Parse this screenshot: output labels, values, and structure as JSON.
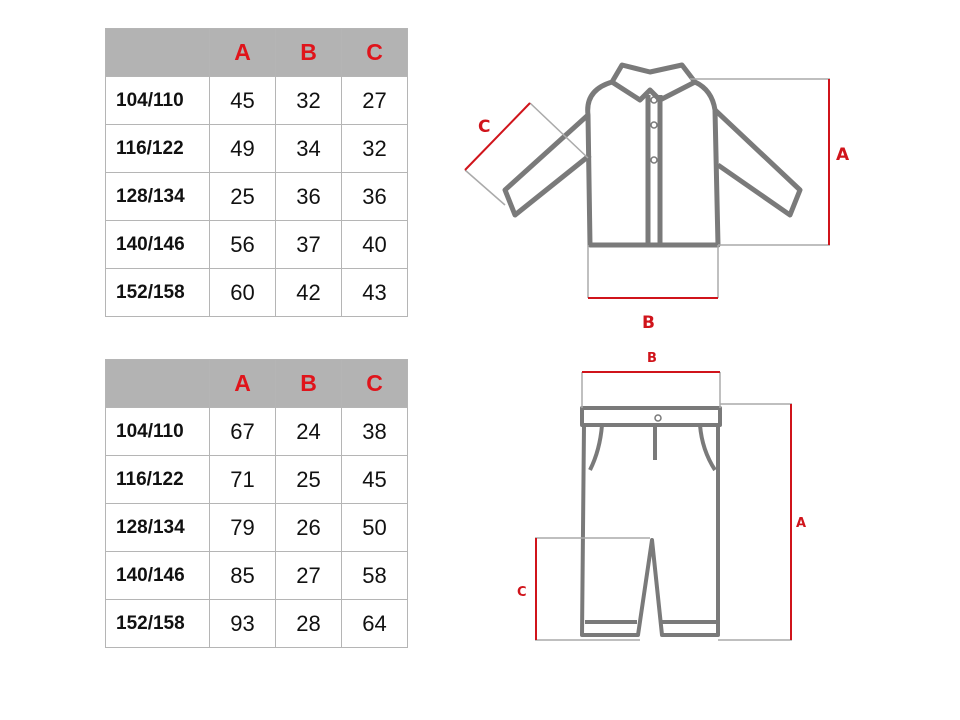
{
  "shirt_table": {
    "headers": [
      "",
      "A",
      "B",
      "C"
    ],
    "rows": [
      {
        "size": "104/110",
        "A": "45",
        "B": "32",
        "C": "27"
      },
      {
        "size": "116/122",
        "A": "49",
        "B": "34",
        "C": "32"
      },
      {
        "size": "128/134",
        "A": "25",
        "B": "36",
        "C": "36"
      },
      {
        "size": "140/146",
        "A": "56",
        "B": "37",
        "C": "40"
      },
      {
        "size": "152/158",
        "A": "60",
        "B": "42",
        "C": "43"
      }
    ]
  },
  "pants_table": {
    "headers": [
      "",
      "A",
      "B",
      "C"
    ],
    "rows": [
      {
        "size": "104/110",
        "A": "67",
        "B": "24",
        "C": "38"
      },
      {
        "size": "116/122",
        "A": "71",
        "B": "25",
        "C": "45"
      },
      {
        "size": "128/134",
        "A": "79",
        "B": "26",
        "C": "50"
      },
      {
        "size": "140/146",
        "A": "85",
        "B": "27",
        "C": "58"
      },
      {
        "size": "152/158",
        "A": "93",
        "B": "28",
        "C": "64"
      }
    ]
  },
  "shirt_diagram": {
    "label_a": "A",
    "label_b": "B",
    "label_c": "C"
  },
  "pants_diagram": {
    "label_a": "A",
    "label_b": "B",
    "label_c": "C"
  },
  "colors": {
    "accent": "#d0141b",
    "header_bg": "#b3b3b3",
    "outline": "#7a7a7a"
  }
}
